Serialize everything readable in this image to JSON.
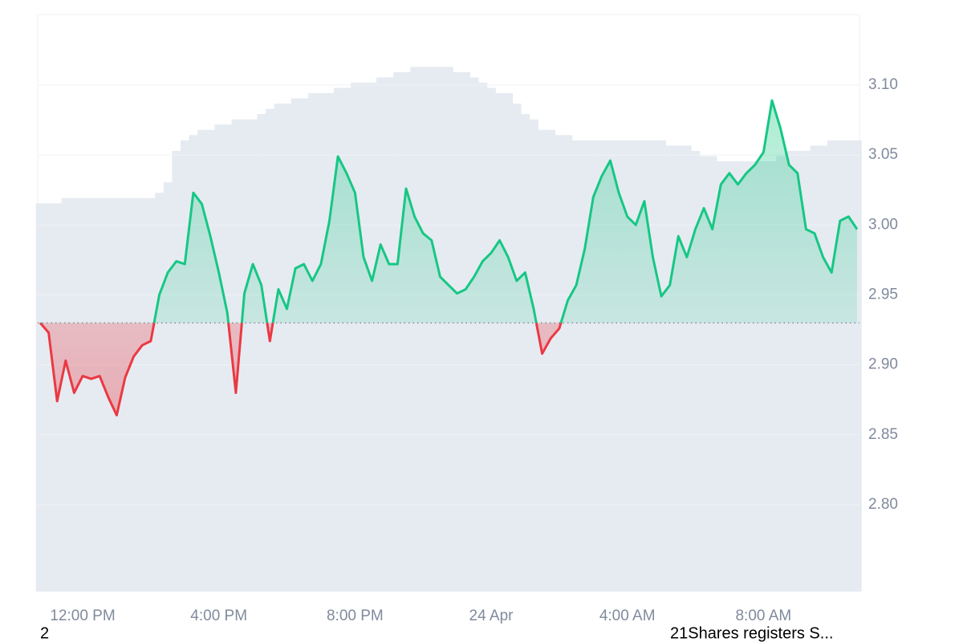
{
  "chart_data": {
    "type": "price-line",
    "categories": [
      "",
      "",
      "",
      "",
      "",
      "12:00 PM",
      "",
      "",
      "",
      "",
      "",
      "",
      "",
      "",
      "",
      "",
      "",
      "",
      "",
      "",
      "",
      "4:00 PM",
      "",
      "",
      "",
      "",
      "",
      "",
      "",
      "",
      "",
      "",
      "",
      "",
      "",
      "",
      "",
      "8:00 PM",
      "",
      "",
      "",
      "",
      "",
      "",
      "",
      "",
      "",
      "",
      "",
      "",
      "",
      "",
      "",
      "24 Apr",
      "",
      "",
      "",
      "",
      "",
      "",
      "",
      "",
      "",
      "",
      "",
      "",
      "",
      "",
      "",
      "4:00 AM",
      "",
      "",
      "",
      "",
      "",
      "",
      "",
      "",
      "",
      "",
      "",
      "",
      "",
      "",
      "",
      "8:00 AM",
      "",
      "",
      "",
      "",
      "",
      "",
      "",
      "",
      "",
      "",
      ""
    ],
    "values": [
      2.93,
      2.923,
      2.874,
      2.903,
      2.88,
      2.892,
      2.89,
      2.892,
      2.877,
      2.864,
      2.891,
      2.906,
      2.914,
      2.917,
      2.95,
      2.966,
      2.974,
      2.972,
      3.023,
      3.015,
      2.992,
      2.966,
      2.937,
      2.88,
      2.951,
      2.972,
      2.957,
      2.917,
      2.954,
      2.94,
      2.969,
      2.972,
      2.96,
      2.972,
      3.003,
      3.049,
      3.037,
      3.023,
      2.977,
      2.96,
      2.986,
      2.972,
      2.972,
      3.026,
      3.006,
      2.994,
      2.989,
      2.963,
      2.957,
      2.951,
      2.954,
      2.963,
      2.974,
      2.98,
      2.989,
      2.977,
      2.96,
      2.966,
      2.94,
      2.908,
      2.919,
      2.926,
      2.946,
      2.957,
      2.983,
      3.02,
      3.035,
      3.046,
      3.023,
      3.006,
      3.0,
      3.017,
      2.977,
      2.949,
      2.957,
      2.992,
      2.977,
      2.997,
      3.012,
      2.997,
      3.029,
      3.037,
      3.029,
      3.037,
      3.043,
      3.052,
      3.089,
      3.069,
      3.043,
      3.037,
      2.997,
      2.994,
      2.977,
      2.966,
      3.003,
      3.006,
      2.997
    ],
    "volume": [
      74,
      74,
      74,
      75,
      75,
      75,
      75,
      75,
      75,
      75,
      75,
      75,
      75,
      75,
      76,
      78,
      84,
      86,
      87,
      88,
      88,
      89,
      89,
      90,
      90,
      90,
      91,
      92,
      93,
      93,
      94,
      94,
      95,
      95,
      95,
      96,
      96,
      97,
      97,
      97,
      98,
      98,
      99,
      99,
      100,
      100,
      100,
      100,
      100,
      99,
      99,
      98,
      97,
      96,
      95,
      95,
      93,
      91,
      90,
      88,
      88,
      87,
      87,
      86,
      86,
      86,
      86,
      86,
      86,
      86,
      86,
      86,
      86,
      86,
      85,
      85,
      85,
      84,
      83,
      83,
      82,
      82,
      82,
      82,
      82,
      82,
      82,
      83,
      84,
      84,
      84,
      85,
      85,
      86,
      86,
      86,
      86
    ],
    "vlim": [
      0,
      110
    ],
    "baseline": 2.93,
    "up_color": "#16c784",
    "down_color": "#ea3943",
    "volume_color": "#e6ebf1",
    "ylim": [
      2.738,
      3.1505
    ],
    "yticks": [
      {
        "value": 2.8,
        "label": "2.80"
      },
      2.85,
      {
        "value": 2.9,
        "label": "2.90"
      },
      2.95,
      {
        "value": 3.0,
        "label": "3.00"
      },
      3.05,
      {
        "value": 3.1,
        "label": "3.10"
      }
    ],
    "grid": true
  },
  "footer": {
    "left": "2",
    "right": "21Shares registers S..."
  }
}
